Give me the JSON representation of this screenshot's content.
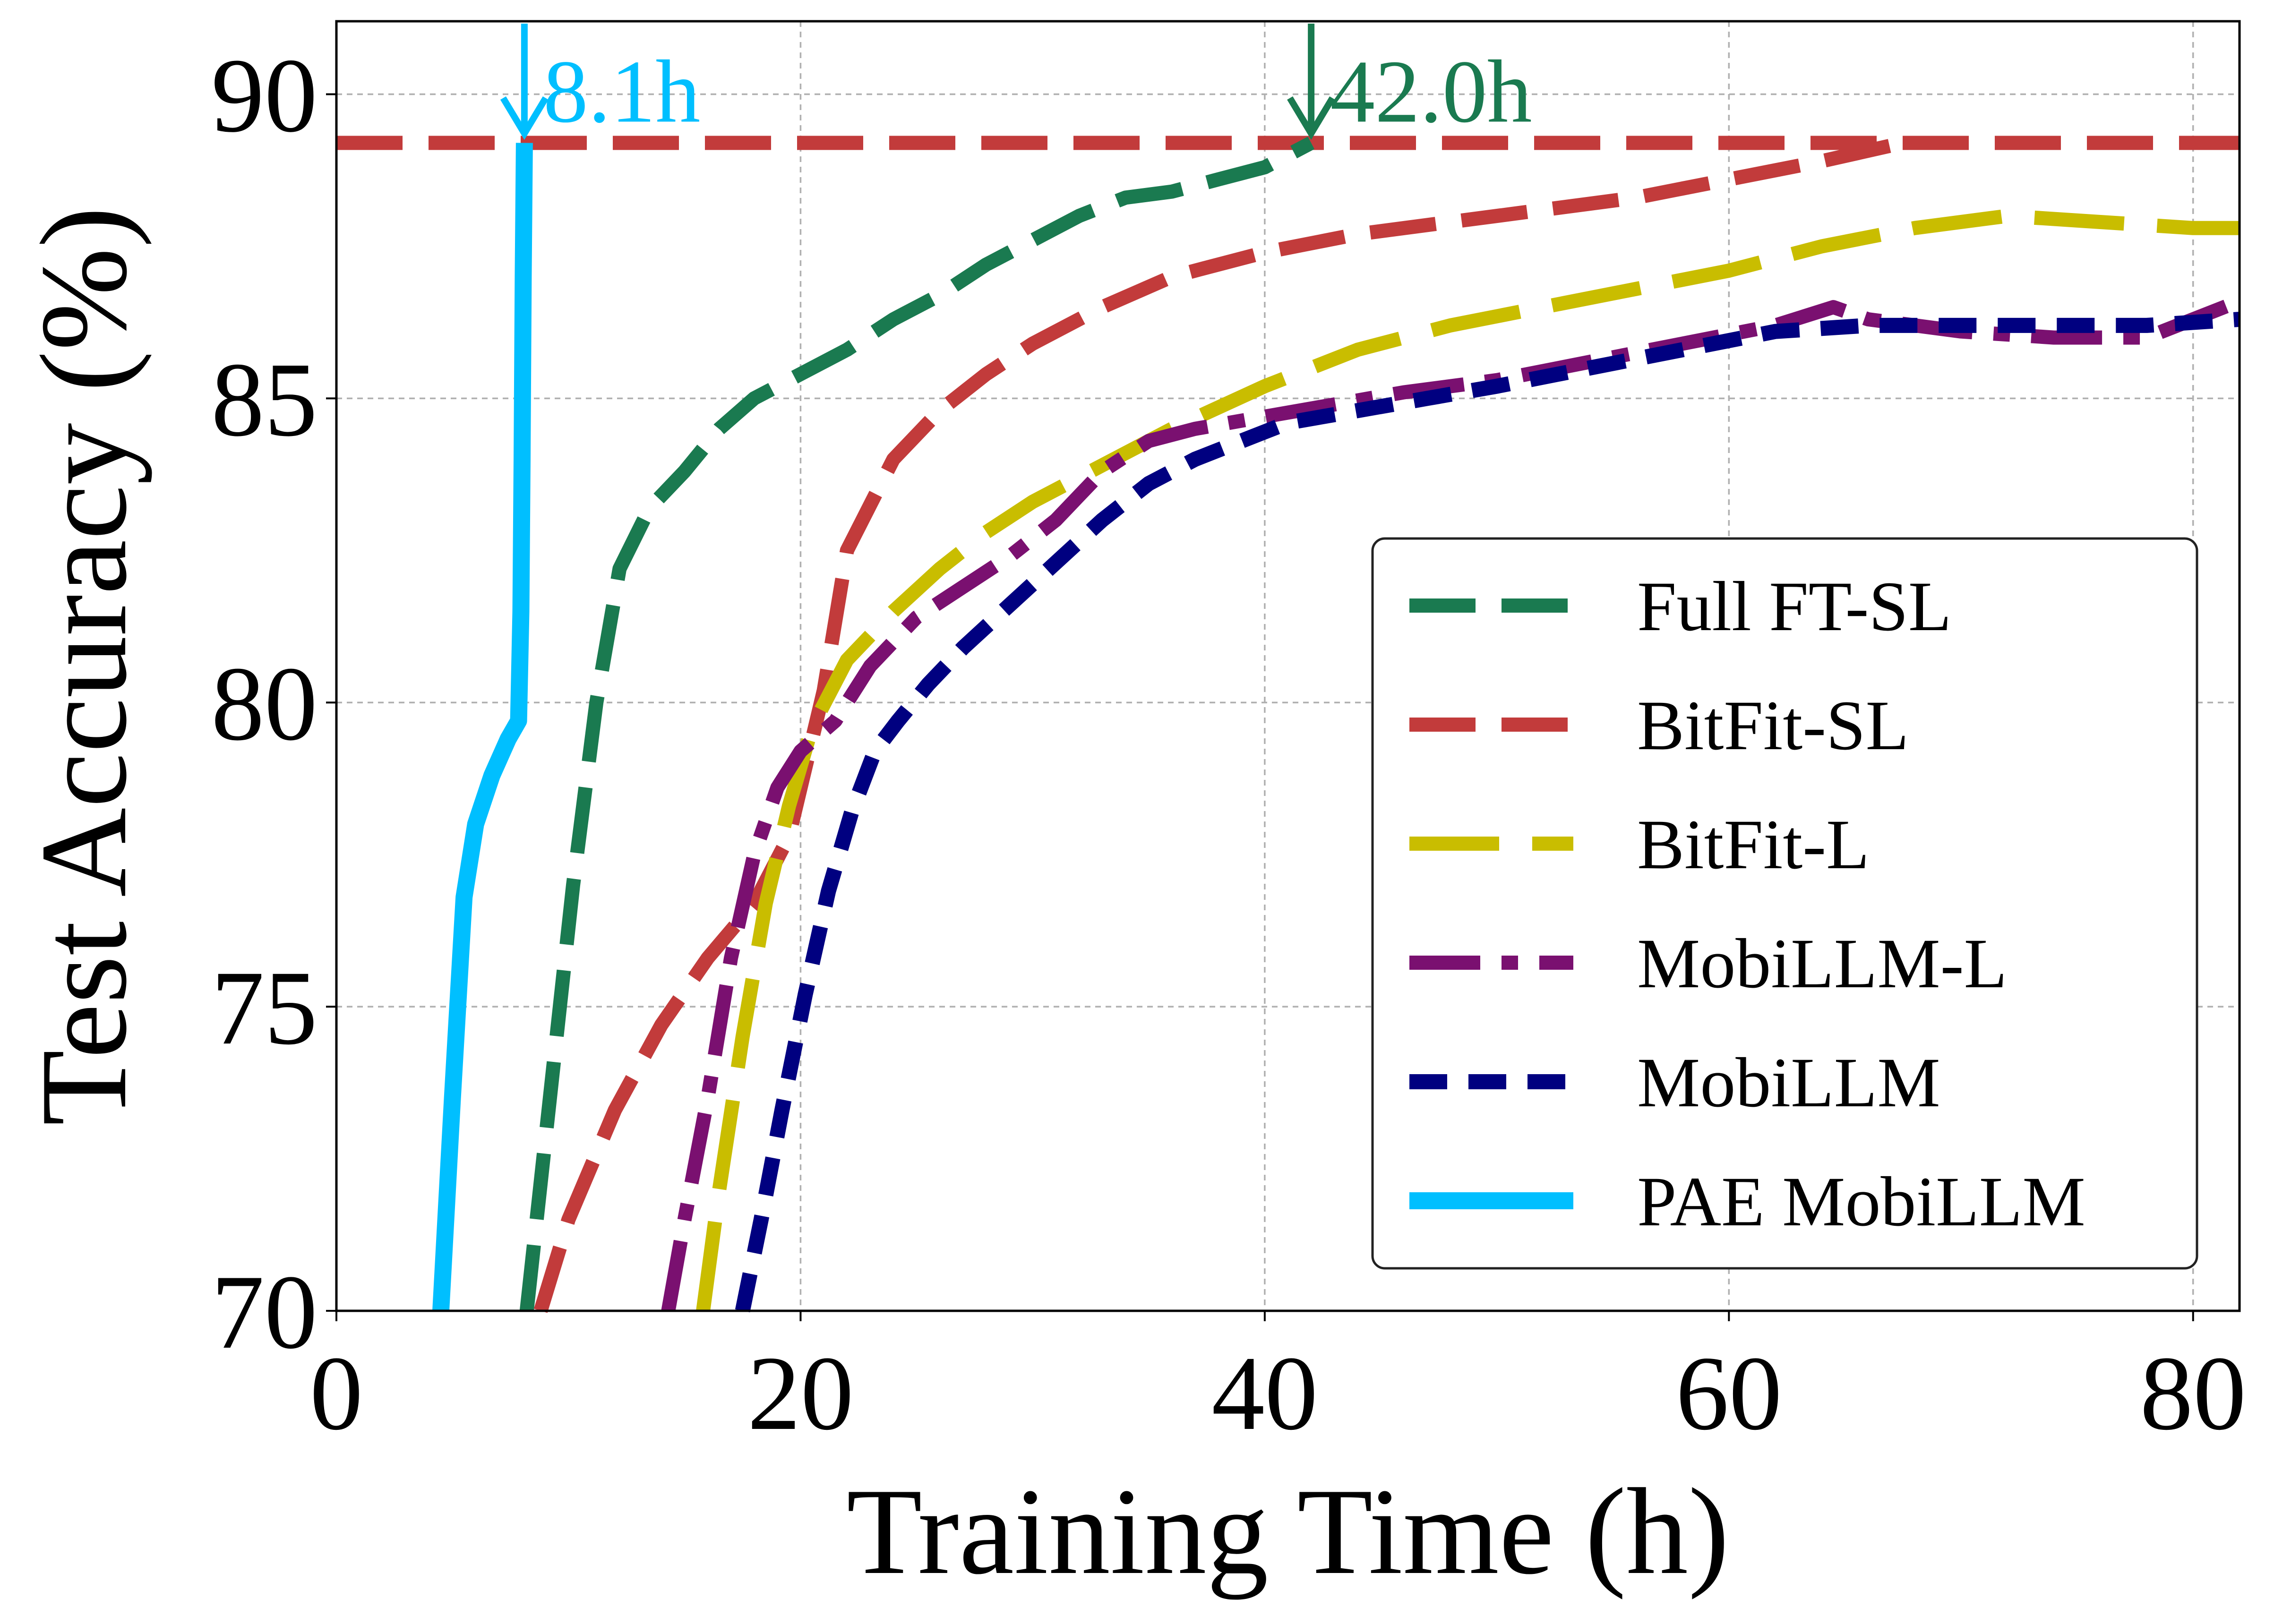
{
  "chart_data": {
    "type": "line",
    "title": "",
    "xlabel": "Training Time (h)",
    "ylabel": "Test Accuracy (%)",
    "xlim": [
      0,
      82
    ],
    "ylim": [
      70,
      91.2
    ],
    "xticks": [
      0,
      20,
      40,
      60,
      80
    ],
    "yticks": [
      70,
      75,
      80,
      85,
      90
    ],
    "grid": true,
    "legend_position": "lower-right",
    "reference_line": {
      "y": 89.2,
      "color": "#c23b3b",
      "style": "dashed"
    },
    "annotations": [
      {
        "text": "8.1h",
        "x": 8.1,
        "color": "#00bfff"
      },
      {
        "text": "42.0h",
        "x": 42.0,
        "color": "#1a7a50"
      }
    ],
    "series": [
      {
        "name": "Full FT-SL",
        "color": "#1a7a50",
        "style": "dashed",
        "x": [
          8.2,
          9.2,
          10.2,
          11.2,
          12.2,
          13.5,
          15,
          16.5,
          18,
          20,
          22,
          24,
          26,
          28,
          30,
          32,
          34,
          36,
          38,
          40,
          42
        ],
        "y": [
          70,
          73.5,
          77,
          80,
          82.2,
          83.2,
          83.8,
          84.5,
          85.0,
          85.4,
          85.8,
          86.3,
          86.7,
          87.2,
          87.6,
          88.0,
          88.3,
          88.4,
          88.6,
          88.8,
          89.2
        ]
      },
      {
        "name": "BitFit-SL",
        "color": "#c23b3b",
        "style": "dashed",
        "x": [
          8.8,
          10,
          12,
          14,
          16,
          18,
          19.5,
          21,
          22,
          24,
          26,
          28,
          30,
          33,
          36,
          40,
          44,
          48,
          52,
          56,
          60,
          64,
          67.5
        ],
        "y": [
          70,
          71.5,
          73.3,
          74.7,
          75.8,
          76.7,
          77.8,
          80.2,
          82.5,
          84.0,
          84.8,
          85.4,
          85.9,
          86.5,
          87.0,
          87.4,
          87.7,
          87.9,
          88.1,
          88.3,
          88.6,
          88.9,
          89.2
        ]
      },
      {
        "name": "BitFit-L",
        "color": "#c9bd00",
        "style": "long-dashed",
        "x": [
          15.8,
          16.5,
          17.5,
          18.5,
          19.5,
          20.5,
          22,
          24,
          26,
          28,
          30,
          33,
          36,
          40,
          44,
          48,
          52,
          56,
          60,
          64,
          68,
          72,
          76,
          80,
          82
        ],
        "y": [
          70,
          72.0,
          74.5,
          76.7,
          78.3,
          79.6,
          80.7,
          81.5,
          82.2,
          82.8,
          83.3,
          83.9,
          84.5,
          85.2,
          85.8,
          86.2,
          86.5,
          86.8,
          87.1,
          87.5,
          87.8,
          88.0,
          87.9,
          87.8,
          87.8
        ]
      },
      {
        "name": "MobiLLM-L",
        "color": "#7a1070",
        "style": "dash-dot",
        "x": [
          14.3,
          15,
          16,
          17,
          18,
          19,
          20,
          21.5,
          23,
          25,
          27,
          29,
          31,
          33,
          35,
          37,
          40,
          43,
          46,
          50,
          54,
          58,
          62,
          64.5,
          66,
          70,
          74,
          78,
          82
        ],
        "y": [
          70,
          71.5,
          73.5,
          75.8,
          77.5,
          78.6,
          79.2,
          79.7,
          80.6,
          81.4,
          81.9,
          82.4,
          83.0,
          83.8,
          84.3,
          84.5,
          84.7,
          84.9,
          85.1,
          85.3,
          85.6,
          85.9,
          86.2,
          86.5,
          86.3,
          86.1,
          86.0,
          86.0,
          86.6
        ]
      },
      {
        "name": "MobiLLM",
        "color": "#000080",
        "style": "dotted",
        "x": [
          17.5,
          18.3,
          19.2,
          20.2,
          21.2,
          22.2,
          23.2,
          24.2,
          25.5,
          27,
          29,
          31,
          33,
          35,
          37,
          39,
          41,
          44,
          47,
          50,
          54,
          58,
          62,
          66,
          70,
          74,
          78,
          82
        ],
        "y": [
          70,
          71.5,
          73.3,
          75.2,
          76.9,
          78.2,
          79.2,
          79.7,
          80.3,
          80.9,
          81.6,
          82.3,
          83.0,
          83.6,
          84.0,
          84.3,
          84.6,
          84.8,
          85.0,
          85.2,
          85.5,
          85.8,
          86.1,
          86.2,
          86.2,
          86.2,
          86.2,
          86.3
        ]
      },
      {
        "name": "PAE MobiLLM",
        "color": "#00bfff",
        "style": "solid",
        "x": [
          4.5,
          5.0,
          5.5,
          6.0,
          6.7,
          7.4,
          7.85,
          7.95,
          8.0,
          8.05,
          8.1
        ],
        "y": [
          70,
          73.5,
          76.8,
          78.0,
          78.8,
          79.4,
          79.7,
          81.5,
          84.0,
          87.0,
          89.2
        ]
      }
    ]
  }
}
